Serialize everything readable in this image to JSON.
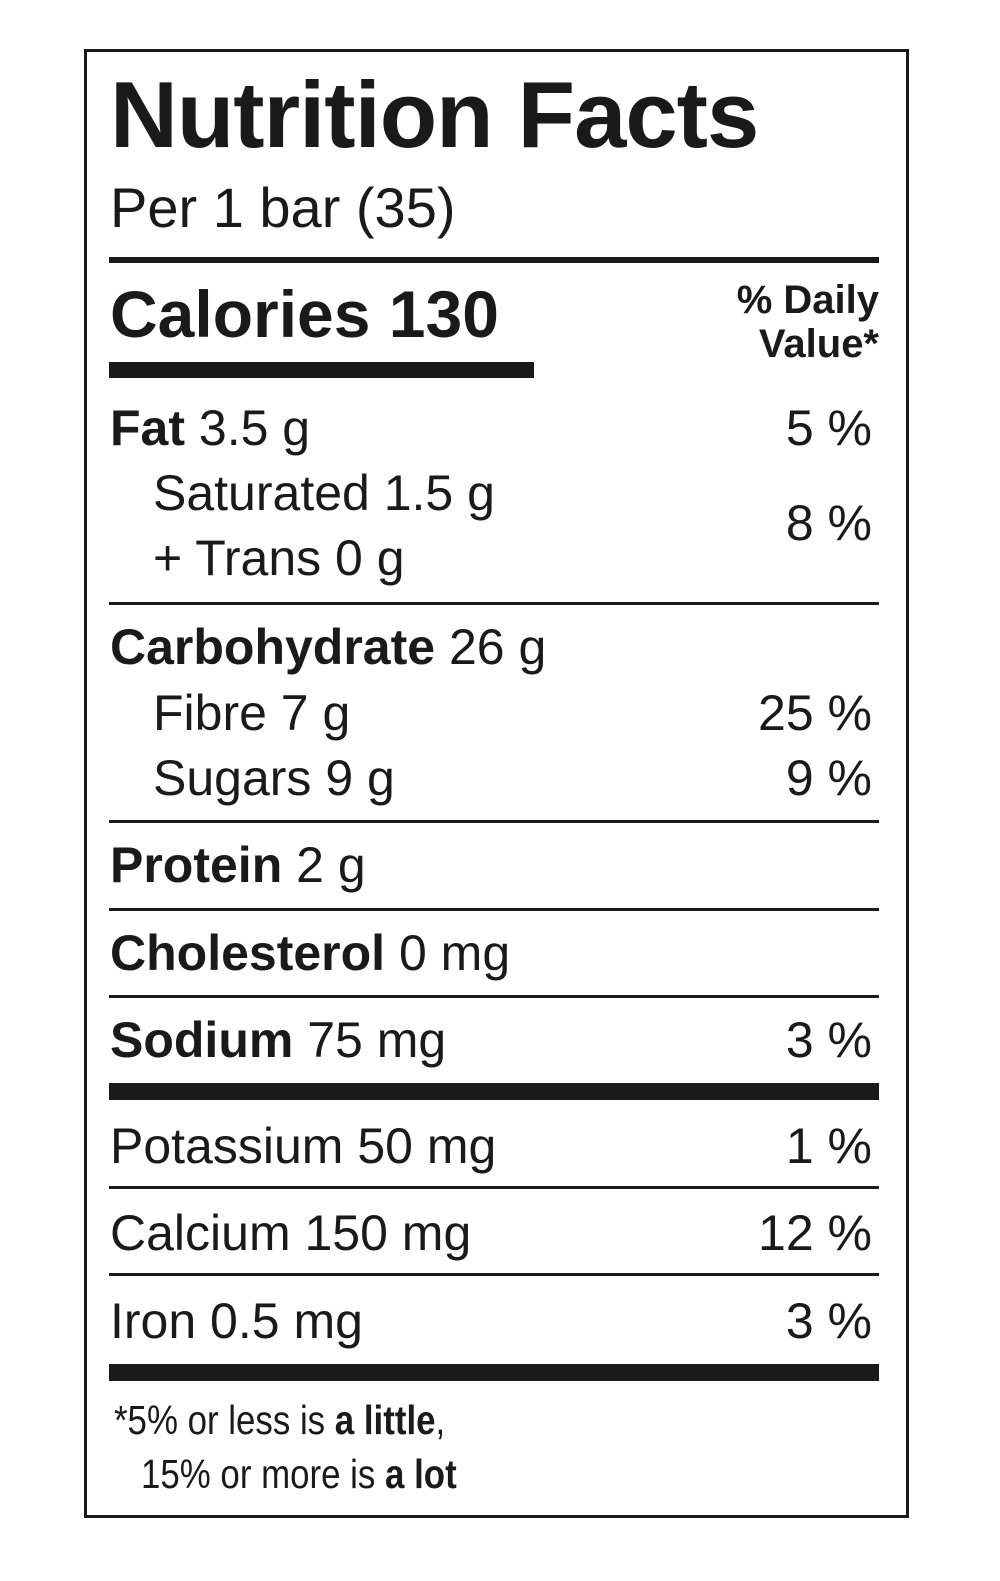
{
  "label": {
    "title": "Nutrition Facts",
    "serving": "Per 1 bar (35)",
    "calories_label": "Calories 130",
    "daily_value_header_line1": "% Daily",
    "daily_value_header_line2": "Value*"
  },
  "nutrients": {
    "fat": {
      "name": "Fat",
      "amount": "3.5 g",
      "dv": "5 %"
    },
    "saturated": {
      "name": "Saturated 1.5 g"
    },
    "trans": {
      "name": "+ Trans 0 g",
      "dv_combined": "8 %"
    },
    "carbohydrate": {
      "name": "Carbohydrate",
      "amount": "26 g"
    },
    "fibre": {
      "name": "Fibre 7 g",
      "dv": "25 %"
    },
    "sugars": {
      "name": "Sugars 9 g",
      "dv": "9 %"
    },
    "protein": {
      "name": "Protein",
      "amount": "2 g"
    },
    "cholesterol": {
      "name": "Cholesterol",
      "amount": "0 mg"
    },
    "sodium": {
      "name": "Sodium",
      "amount": "75 mg",
      "dv": "3 %"
    },
    "potassium": {
      "name": "Potassium 50 mg",
      "dv": "1 %"
    },
    "calcium": {
      "name": "Calcium 150 mg",
      "dv": "12 %"
    },
    "iron": {
      "name": "Iron 0.5 mg",
      "dv": "3 %"
    }
  },
  "footnote": {
    "line1_prefix": "*5% or less is ",
    "line1_bold": "a little",
    "line1_suffix": ",",
    "line2_prefix": "15% or more is ",
    "line2_bold": "a lot"
  }
}
